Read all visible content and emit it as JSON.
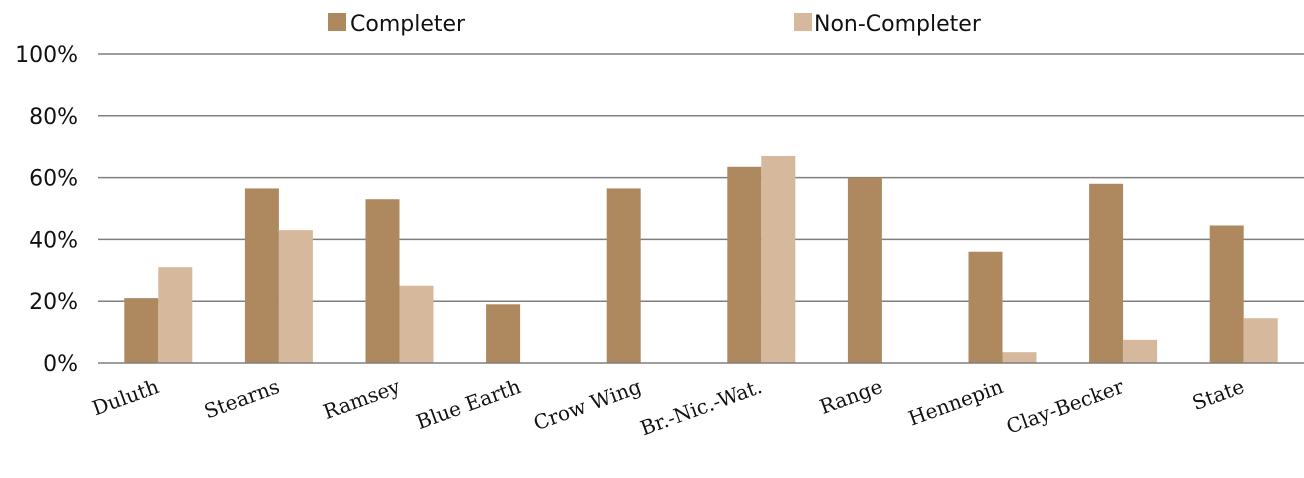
{
  "chart_data": {
    "type": "bar",
    "categories": [
      "Duluth",
      "Stearns",
      "Ramsey",
      "Blue Earth",
      "Crow Wing",
      "Br.-Nic.-Wat.",
      "Range",
      "Hennepin",
      "Clay-Becker",
      "State"
    ],
    "series": [
      {
        "name": "Completer",
        "color": "#ae8960",
        "values": [
          21,
          56.5,
          53,
          19,
          56.5,
          63.5,
          60,
          36,
          58,
          44.5
        ]
      },
      {
        "name": "Non-Completer",
        "color": "#d6b99c",
        "values": [
          31,
          43,
          25,
          0,
          0,
          67,
          0,
          3.5,
          7.5,
          14.5
        ]
      }
    ],
    "ylim": [
      0,
      100
    ],
    "yticks": [
      "0%",
      "20%",
      "40%",
      "60%",
      "80%",
      "100%"
    ],
    "ytick_values": [
      0,
      20,
      40,
      60,
      80,
      100
    ],
    "grid": true,
    "legend_position": "top",
    "gridline_color": "#7f7f7f"
  }
}
